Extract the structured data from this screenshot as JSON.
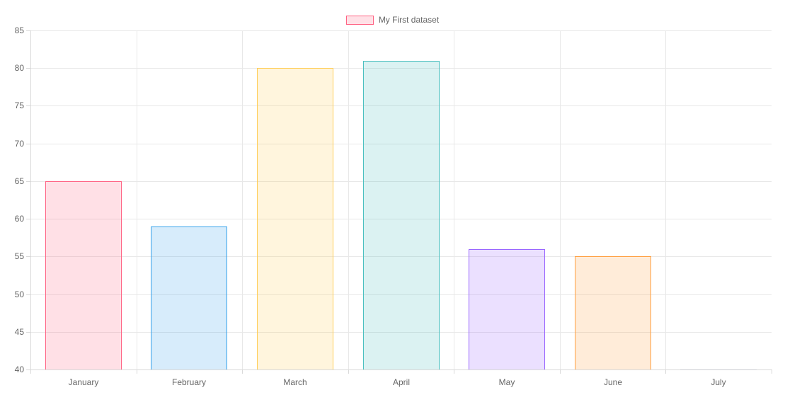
{
  "chart_data": {
    "type": "bar",
    "title": "",
    "xlabel": "",
    "ylabel": "",
    "categories": [
      "January",
      "February",
      "March",
      "April",
      "May",
      "June",
      "July"
    ],
    "series": [
      {
        "name": "My First dataset",
        "values": [
          65,
          59,
          80,
          81,
          56,
          55,
          40
        ]
      }
    ],
    "ylim": [
      40,
      85
    ],
    "y_tick_step": 5,
    "y_tick_labels": [
      "40",
      "45",
      "50",
      "55",
      "60",
      "65",
      "70",
      "75",
      "80",
      "85"
    ],
    "grid": true,
    "legend_position": "top-center",
    "border_colors": [
      "#ff6384",
      "#36a2eb",
      "#ffcd56",
      "#4bc0c0",
      "#9966ff",
      "#ff9f40",
      "#c9cbcf"
    ],
    "fill_colors": [
      "rgba(255,99,132,0.2)",
      "rgba(54,162,235,0.2)",
      "rgba(255,205,86,0.2)",
      "rgba(75,192,192,0.2)",
      "rgba(153,102,255,0.2)",
      "rgba(255,159,64,0.2)",
      "rgba(201,203,207,0.2)"
    ],
    "grid_color": "#e8e8e8",
    "axis_line_color": "#d9d9d9",
    "tick_label_color": "#666666",
    "background_color": "#ffffff"
  }
}
